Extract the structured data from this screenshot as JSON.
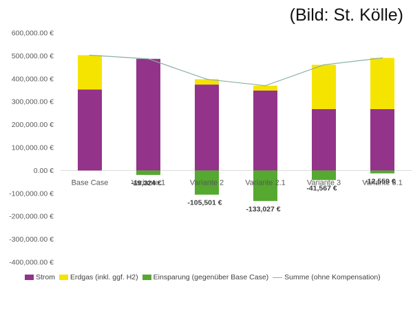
{
  "credit": "(Bild: St. Kölle)",
  "chart_data": {
    "type": "bar",
    "stacked": true,
    "categories": [
      "Base Case",
      "Variante 1",
      "Variante 2",
      "Variante 2.1",
      "Variante 3",
      "Variante 3.1"
    ],
    "series": [
      {
        "name": "Strom",
        "color": "#93338A",
        "values": [
          353000,
          487000,
          375000,
          349000,
          268000,
          268000
        ]
      },
      {
        "name": "Erdgas (inkl. ggf. H2)",
        "color": "#F5E400",
        "values": [
          150000,
          0,
          23000,
          21000,
          193000,
          223000
        ]
      },
      {
        "name": "Einsparung (gegenüber Base Case)",
        "color": "#55A830",
        "values": [
          0,
          -19324,
          -105501,
          -133027,
          -41567,
          -12559
        ]
      },
      {
        "name": "Summe (ohne Kompensation)",
        "type": "line",
        "color": "#8AAFA5",
        "values": [
          503000,
          487000,
          398000,
          370000,
          461000,
          491000
        ]
      }
    ],
    "savings_labels": [
      "",
      "-19,324 €",
      "-105,501 €",
      "-133,027 €",
      "-41,567 €",
      "-12,559 €"
    ],
    "ylim": [
      -400000,
      600000
    ],
    "yticks": [
      600000,
      500000,
      400000,
      300000,
      200000,
      100000,
      0,
      -100000,
      -200000,
      -300000,
      -400000
    ],
    "ytick_labels": [
      "600,000.00 €",
      "500,000.00 €",
      "400,000.00 €",
      "300,000.00 €",
      "200,000.00 €",
      "100,000.00 €",
      "0.00 €",
      "-100,000.00 €",
      "-200,000.00 €",
      "-300,000.00 €",
      "-400,000.00 €"
    ],
    "legend_position": "bottom",
    "title": "",
    "xlabel": "",
    "ylabel": ""
  }
}
